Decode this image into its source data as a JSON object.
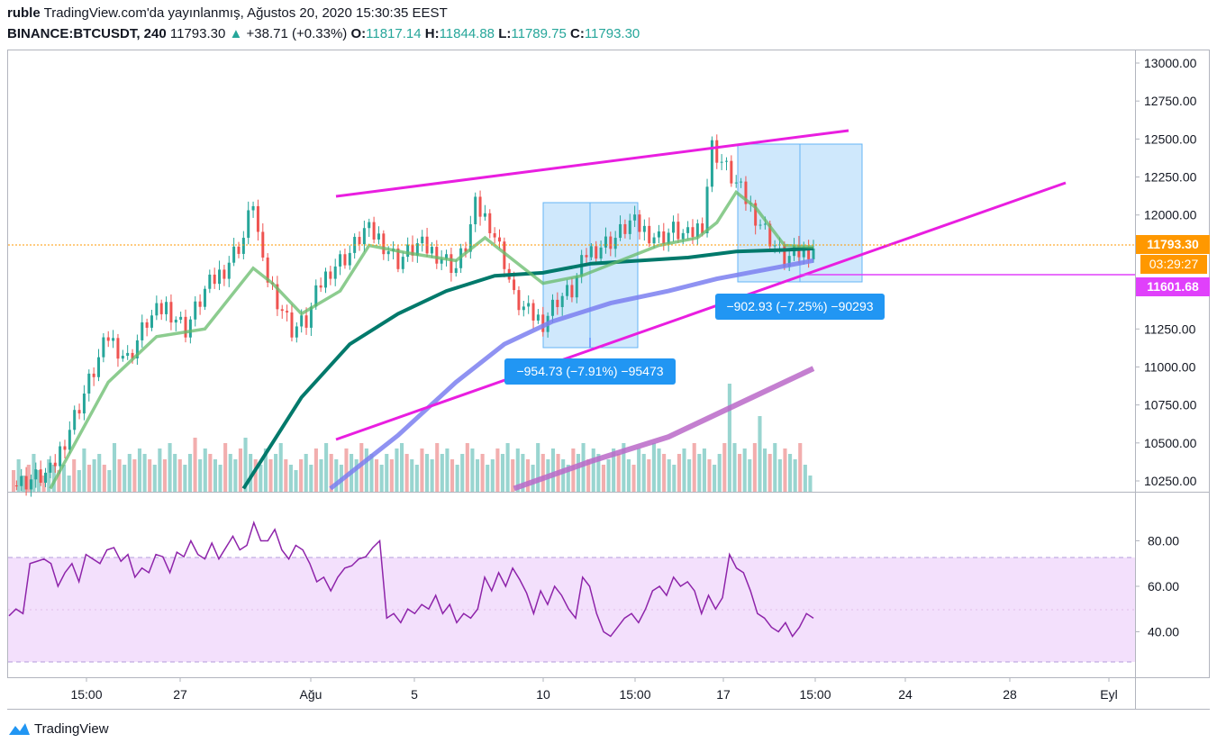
{
  "header": {
    "author": "ruble",
    "published": "TradingView.com'da yayınlanmış, Ağustos 20, 2020 15:30:35 EEST",
    "symbol": "BINANCE:BTCUSDT, 240",
    "last": "11793.30",
    "change_arrow": "▲",
    "change": "+38.71 (+0.33%)",
    "o_label": "O:",
    "o": "11817.14",
    "h_label": "H:",
    "h": "11844.88",
    "l_label": "L:",
    "l": "11789.75",
    "c_label": "C:",
    "c": "11793.30"
  },
  "price_axis": {
    "ticks": [
      "13000.00",
      "12750.00",
      "12500.00",
      "12250.00",
      "12000.00",
      "11250.00",
      "11000.00",
      "10750.00",
      "10500.00",
      "10250.00"
    ],
    "tick_values": [
      13000,
      12750,
      12500,
      12250,
      12000,
      11250,
      11000,
      10750,
      10500,
      10250
    ],
    "last_price_label": "11793.30",
    "countdown_label": "03:29:27",
    "level_label": "11601.68",
    "last_price_color": "#ff9800",
    "level_color": "#e040fb"
  },
  "rsi_axis": {
    "ticks": [
      "80.00",
      "60.00",
      "40.00"
    ],
    "tick_values": [
      80,
      60,
      40
    ],
    "band": [
      30,
      70
    ]
  },
  "time_axis": {
    "ticks": [
      "15:00",
      "27",
      "Ağu",
      "5",
      "10",
      "15:00",
      "15:00",
      "17",
      "15:00",
      "24",
      "28",
      "Eyl"
    ]
  },
  "measurements": [
    {
      "label": "−954.73 (−7.91%) −95473"
    },
    {
      "label": "−902.93 (−7.25%) −90293"
    }
  ],
  "chart_data": {
    "type": "candlestick",
    "symbol": "BINANCE:BTCUSDT",
    "interval": "240",
    "price_range": [
      10200,
      13050
    ],
    "last_price": 11793.3,
    "horizontal_level": 11601.68,
    "ohlc_last": {
      "open": 11817.14,
      "high": 11844.88,
      "low": 11789.75,
      "close": 11793.3
    },
    "price_path": [
      [
        0,
        10220
      ],
      [
        8,
        10300
      ],
      [
        12,
        10600
      ],
      [
        16,
        10900
      ],
      [
        20,
        11200
      ],
      [
        24,
        11050
      ],
      [
        28,
        11300
      ],
      [
        32,
        11400
      ],
      [
        36,
        11250
      ],
      [
        40,
        11500
      ],
      [
        44,
        11650
      ],
      [
        48,
        11850
      ],
      [
        50,
        12100
      ],
      [
        52,
        11650
      ],
      [
        55,
        11450
      ],
      [
        58,
        11250
      ],
      [
        61,
        11300
      ],
      [
        64,
        11550
      ],
      [
        66,
        11650
      ],
      [
        70,
        11750
      ],
      [
        73,
        11900
      ],
      [
        76,
        11850
      ],
      [
        80,
        11700
      ],
      [
        84,
        11800
      ],
      [
        88,
        11750
      ],
      [
        92,
        11650
      ],
      [
        94,
        11800
      ],
      [
        96,
        12050
      ],
      [
        99,
        11950
      ],
      [
        102,
        11700
      ],
      [
        104,
        11450
      ],
      [
        107,
        11350
      ],
      [
        110,
        11300
      ],
      [
        113,
        11450
      ],
      [
        116,
        11500
      ],
      [
        119,
        11750
      ],
      [
        122,
        11800
      ],
      [
        125,
        11850
      ],
      [
        128,
        11950
      ],
      [
        131,
        11900
      ],
      [
        134,
        11850
      ],
      [
        137,
        11900
      ],
      [
        140,
        11850
      ],
      [
        143,
        11950
      ],
      [
        145,
        12450
      ],
      [
        148,
        12300
      ],
      [
        151,
        12150
      ],
      [
        154,
        12000
      ],
      [
        157,
        11850
      ],
      [
        160,
        11700
      ],
      [
        163,
        11750
      ],
      [
        166,
        11793
      ]
    ],
    "ema_fast": [
      [
        8,
        10200
      ],
      [
        20,
        10900
      ],
      [
        30,
        11200
      ],
      [
        40,
        11250
      ],
      [
        50,
        11650
      ],
      [
        54,
        11550
      ],
      [
        60,
        11350
      ],
      [
        68,
        11500
      ],
      [
        74,
        11800
      ],
      [
        82,
        11750
      ],
      [
        92,
        11700
      ],
      [
        98,
        11850
      ],
      [
        104,
        11700
      ],
      [
        110,
        11550
      ],
      [
        118,
        11600
      ],
      [
        126,
        11700
      ],
      [
        134,
        11800
      ],
      [
        142,
        11850
      ],
      [
        146,
        11950
      ],
      [
        150,
        12150
      ],
      [
        154,
        12050
      ],
      [
        160,
        11800
      ],
      [
        166,
        11790
      ]
    ],
    "ema_mid": [
      [
        48,
        10200
      ],
      [
        60,
        10800
      ],
      [
        70,
        11150
      ],
      [
        80,
        11350
      ],
      [
        90,
        11500
      ],
      [
        100,
        11600
      ],
      [
        110,
        11620
      ],
      [
        120,
        11680
      ],
      [
        130,
        11700
      ],
      [
        140,
        11720
      ],
      [
        150,
        11760
      ],
      [
        160,
        11770
      ],
      [
        166,
        11780
      ]
    ],
    "ema_slow": [
      [
        66,
        10200
      ],
      [
        80,
        10550
      ],
      [
        92,
        10900
      ],
      [
        102,
        11150
      ],
      [
        112,
        11300
      ],
      [
        124,
        11420
      ],
      [
        136,
        11500
      ],
      [
        146,
        11580
      ],
      [
        156,
        11640
      ],
      [
        166,
        11700
      ]
    ],
    "ema_200": [
      [
        104,
        10200
      ],
      [
        120,
        10380
      ],
      [
        136,
        10540
      ],
      [
        150,
        10750
      ],
      [
        166,
        10990
      ]
    ],
    "volume": [
      4,
      6,
      3,
      5,
      7,
      4,
      3,
      6,
      5,
      4,
      5,
      3,
      6,
      4,
      8,
      5,
      6,
      7,
      5,
      4,
      9,
      6,
      5,
      7,
      6,
      8,
      7,
      6,
      5,
      8,
      6,
      9,
      7,
      6,
      5,
      7,
      10,
      6,
      8,
      7,
      6,
      5,
      9,
      7,
      6,
      8,
      10,
      7,
      6,
      5,
      8,
      6,
      7,
      9,
      6,
      5,
      4,
      6,
      7,
      5,
      8,
      6,
      9,
      7,
      6,
      5,
      8,
      7,
      6,
      9,
      8,
      7,
      6,
      5,
      7,
      6,
      8,
      9,
      7,
      6,
      5,
      8,
      7,
      6,
      9,
      7,
      8,
      6,
      5,
      7,
      9,
      8,
      6,
      7,
      5,
      6,
      8,
      7,
      9,
      6,
      8,
      7,
      6,
      5,
      9,
      7,
      6,
      8,
      7,
      6,
      5,
      8,
      7,
      9,
      6,
      8,
      7,
      5,
      6,
      8,
      7,
      9,
      6,
      5,
      8,
      7,
      6,
      9,
      8,
      7,
      6,
      5,
      7,
      8,
      6,
      9,
      7,
      8,
      6,
      5,
      7,
      9,
      20,
      9,
      7,
      8,
      6,
      9,
      14,
      8,
      7,
      9,
      6,
      8,
      7,
      6,
      9,
      5,
      3
    ],
    "rsi": [
      [
        0,
        47
      ],
      [
        2,
        50
      ],
      [
        4,
        48
      ],
      [
        6,
        70
      ],
      [
        8,
        71
      ],
      [
        10,
        72
      ],
      [
        12,
        70
      ],
      [
        14,
        60
      ],
      [
        16,
        66
      ],
      [
        18,
        70
      ],
      [
        20,
        62
      ],
      [
        22,
        74
      ],
      [
        24,
        72
      ],
      [
        26,
        70
      ],
      [
        28,
        76
      ],
      [
        30,
        77
      ],
      [
        32,
        71
      ],
      [
        34,
        74
      ],
      [
        36,
        64
      ],
      [
        38,
        68
      ],
      [
        40,
        66
      ],
      [
        42,
        74
      ],
      [
        44,
        73
      ],
      [
        46,
        66
      ],
      [
        48,
        75
      ],
      [
        50,
        73
      ],
      [
        52,
        80
      ],
      [
        54,
        74
      ],
      [
        56,
        72
      ],
      [
        58,
        79
      ],
      [
        60,
        72
      ],
      [
        62,
        77
      ],
      [
        64,
        82
      ],
      [
        66,
        76
      ],
      [
        68,
        78
      ],
      [
        70,
        88
      ],
      [
        72,
        80
      ],
      [
        74,
        80
      ],
      [
        76,
        85
      ],
      [
        78,
        76
      ],
      [
        80,
        72
      ],
      [
        82,
        78
      ],
      [
        84,
        76
      ],
      [
        86,
        70
      ],
      [
        88,
        62
      ],
      [
        90,
        64
      ],
      [
        92,
        58
      ],
      [
        94,
        64
      ],
      [
        96,
        68
      ],
      [
        98,
        69
      ],
      [
        100,
        72
      ],
      [
        102,
        73
      ],
      [
        104,
        77
      ],
      [
        106,
        80
      ],
      [
        108,
        46
      ],
      [
        110,
        48
      ],
      [
        112,
        44
      ],
      [
        114,
        50
      ],
      [
        116,
        48
      ],
      [
        118,
        52
      ],
      [
        120,
        50
      ],
      [
        122,
        56
      ],
      [
        124,
        48
      ],
      [
        126,
        52
      ],
      [
        128,
        44
      ],
      [
        130,
        48
      ],
      [
        132,
        46
      ],
      [
        134,
        50
      ],
      [
        136,
        64
      ],
      [
        138,
        58
      ],
      [
        140,
        66
      ],
      [
        142,
        60
      ],
      [
        144,
        68
      ],
      [
        146,
        63
      ],
      [
        148,
        57
      ],
      [
        150,
        48
      ],
      [
        152,
        58
      ],
      [
        154,
        52
      ],
      [
        156,
        60
      ],
      [
        158,
        56
      ],
      [
        160,
        50
      ],
      [
        162,
        46
      ],
      [
        164,
        64
      ],
      [
        166,
        60
      ],
      [
        168,
        48
      ],
      [
        170,
        40
      ],
      [
        172,
        38
      ],
      [
        174,
        42
      ],
      [
        176,
        46
      ],
      [
        178,
        48
      ],
      [
        180,
        44
      ],
      [
        182,
        50
      ],
      [
        184,
        58
      ],
      [
        186,
        60
      ],
      [
        188,
        56
      ],
      [
        190,
        64
      ],
      [
        192,
        60
      ],
      [
        194,
        62
      ],
      [
        196,
        58
      ],
      [
        198,
        48
      ],
      [
        200,
        56
      ],
      [
        202,
        50
      ],
      [
        204,
        55
      ],
      [
        206,
        74
      ],
      [
        208,
        68
      ],
      [
        210,
        66
      ],
      [
        212,
        58
      ],
      [
        214,
        48
      ],
      [
        216,
        46
      ],
      [
        218,
        42
      ],
      [
        220,
        40
      ],
      [
        222,
        44
      ],
      [
        224,
        38
      ],
      [
        226,
        42
      ],
      [
        228,
        48
      ],
      [
        230,
        46
      ]
    ],
    "measurements": [
      {
        "change": -954.73,
        "percent": -7.91,
        "ticks": -95473
      },
      {
        "change": -902.93,
        "percent": -7.25,
        "ticks": -90293
      }
    ]
  }
}
